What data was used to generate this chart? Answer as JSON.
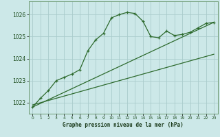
{
  "title": "Graphe pression niveau de la mer (hPa)",
  "background_color": "#cce8e8",
  "grid_color": "#aacccc",
  "line_color": "#2d6a2d",
  "xlim": [
    -0.5,
    23.5
  ],
  "ylim": [
    1021.5,
    1026.6
  ],
  "yticks": [
    1022,
    1023,
    1024,
    1025,
    1026
  ],
  "xticks": [
    0,
    1,
    2,
    3,
    4,
    5,
    6,
    7,
    8,
    9,
    10,
    11,
    12,
    13,
    14,
    15,
    16,
    17,
    18,
    19,
    20,
    21,
    22,
    23
  ],
  "series1_x": [
    0,
    1,
    2,
    3,
    4,
    5,
    6,
    7,
    8,
    9,
    10,
    11,
    12,
    13,
    14,
    15,
    16,
    17,
    18,
    19,
    20,
    21,
    22,
    23
  ],
  "series1_y": [
    1021.8,
    1022.2,
    1022.55,
    1023.0,
    1023.15,
    1023.3,
    1023.5,
    1024.35,
    1024.85,
    1025.15,
    1025.85,
    1026.0,
    1026.1,
    1026.05,
    1025.7,
    1025.0,
    1024.95,
    1025.25,
    1025.05,
    1025.1,
    1025.2,
    1025.4,
    1025.6,
    1025.65
  ],
  "series2_x": [
    0,
    23
  ],
  "series2_y": [
    1021.8,
    1025.65
  ],
  "series3_x": [
    0,
    23
  ],
  "series3_y": [
    1021.9,
    1024.2
  ]
}
